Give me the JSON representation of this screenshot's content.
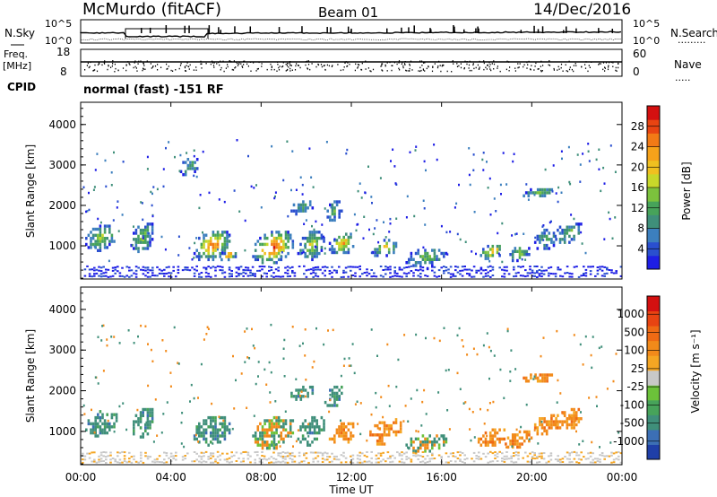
{
  "header": {
    "station": "McMurdo (fitACF)",
    "beam": "Beam 01",
    "date": "14/Dec/2016"
  },
  "noise_panel": {
    "left_label": "N.Sky",
    "right_label": "N.Search",
    "right_dots": ".........",
    "ticks": [
      "10^5",
      "10^0"
    ]
  },
  "freq_panel": {
    "left_label_1": "Freq.",
    "left_label_2": "[MHz]",
    "left_ticks": [
      "18",
      "8"
    ],
    "right_ticks": [
      "60",
      "0"
    ],
    "right_label": "Nave",
    "right_dots": "....."
  },
  "cpid_panel": {
    "label": "CPID",
    "text": "normal (fast) -151 RF"
  },
  "x_axis": {
    "label": "Time UT",
    "ticks": [
      "00:00",
      "04:00",
      "08:00",
      "12:00",
      "16:00",
      "20:00",
      "00:00"
    ]
  },
  "chart_data": [
    {
      "type": "heatmap",
      "name": "power",
      "ylabel": "Slant Range [km]",
      "yticks": [
        "1000",
        "2000",
        "3000",
        "4000"
      ],
      "ylim": [
        180,
        4550
      ],
      "xlim": [
        0,
        24
      ],
      "colorbar": {
        "label": "Power [dB]",
        "ticks": [
          "4",
          "8",
          "12",
          "16",
          "20",
          "24",
          "28"
        ],
        "colors": [
          "#1e1ee6",
          "#2a4fcf",
          "#3c7fbe",
          "#3f8f7a",
          "#47a35a",
          "#7cc23d",
          "#c8d82a",
          "#f0c020",
          "#f6a21a",
          "#f27a16",
          "#e84412",
          "#d41010"
        ]
      },
      "echo_regions": [
        {
          "t": 0.9,
          "r": 1250,
          "dt": 0.7,
          "dr": 350,
          "peak": 0.45
        },
        {
          "t": 2.7,
          "r": 1250,
          "dt": 0.5,
          "dr": 400,
          "peak": 0.4
        },
        {
          "t": 5.8,
          "r": 1050,
          "dt": 0.8,
          "dr": 400,
          "peak": 0.8
        },
        {
          "t": 6.5,
          "r": 800,
          "dt": 0.4,
          "dr": 120,
          "peak": 0.85
        },
        {
          "t": 8.5,
          "r": 1000,
          "dt": 0.9,
          "dr": 450,
          "peak": 0.9
        },
        {
          "t": 10.2,
          "r": 1050,
          "dt": 0.6,
          "dr": 400,
          "peak": 0.5
        },
        {
          "t": 11.6,
          "r": 1100,
          "dt": 0.6,
          "dr": 300,
          "peak": 0.65
        },
        {
          "t": 13.5,
          "r": 1000,
          "dt": 0.6,
          "dr": 250,
          "peak": 0.55
        },
        {
          "t": 15.3,
          "r": 750,
          "dt": 0.9,
          "dr": 250,
          "peak": 0.35
        },
        {
          "t": 18.2,
          "r": 900,
          "dt": 0.5,
          "dr": 200,
          "peak": 0.75
        },
        {
          "t": 19.4,
          "r": 850,
          "dt": 0.5,
          "dr": 200,
          "peak": 0.5
        },
        {
          "t": 20.6,
          "r": 1200,
          "dt": 0.5,
          "dr": 300,
          "peak": 0.35
        },
        {
          "t": 21.6,
          "r": 1350,
          "dt": 0.6,
          "dr": 300,
          "peak": 0.35
        },
        {
          "t": 20.3,
          "r": 2350,
          "dt": 0.7,
          "dr": 150,
          "peak": 0.4
        },
        {
          "t": 4.8,
          "r": 3000,
          "dt": 0.4,
          "dr": 250,
          "peak": 0.3
        },
        {
          "t": 9.8,
          "r": 2000,
          "dt": 0.5,
          "dr": 200,
          "peak": 0.3
        },
        {
          "t": 11.2,
          "r": 1900,
          "dt": 0.4,
          "dr": 300,
          "peak": 0.3
        }
      ]
    },
    {
      "type": "heatmap",
      "name": "velocity",
      "ylabel": "Slant Range [km]",
      "yticks": [
        "1000",
        "2000",
        "3000",
        "4000"
      ],
      "ylim": [
        180,
        4550
      ],
      "xlim": [
        0,
        24
      ],
      "colorbar": {
        "label": "Velocity [m s⁻¹]",
        "ticks": [
          "1000",
          "500",
          "100",
          "25",
          "-25",
          "-100",
          "-500",
          "-1000"
        ],
        "colors": [
          "#1f3fa8",
          "#3c6fb5",
          "#3f8f7a",
          "#47a35a",
          "#6cc23a",
          "#c8c8c8",
          "#f5a623",
          "#f28a1a",
          "#ef6a14",
          "#e84412",
          "#d41010"
        ]
      },
      "echo_regions": [
        {
          "t": 0.9,
          "r": 1250,
          "dt": 0.7,
          "dr": 350,
          "v": "toward"
        },
        {
          "t": 2.7,
          "r": 1250,
          "dt": 0.5,
          "dr": 400,
          "v": "toward"
        },
        {
          "t": 5.8,
          "r": 1050,
          "dt": 0.8,
          "dr": 400,
          "v": "toward"
        },
        {
          "t": 8.5,
          "r": 1000,
          "dt": 0.9,
          "dr": 450,
          "v": "mixed"
        },
        {
          "t": 10.2,
          "r": 1050,
          "dt": 0.6,
          "dr": 400,
          "v": "toward"
        },
        {
          "t": 11.6,
          "r": 1000,
          "dt": 0.6,
          "dr": 300,
          "v": "away"
        },
        {
          "t": 13.5,
          "r": 1050,
          "dt": 0.7,
          "dr": 350,
          "v": "away"
        },
        {
          "t": 15.3,
          "r": 750,
          "dt": 0.9,
          "dr": 250,
          "v": "mixed"
        },
        {
          "t": 18.2,
          "r": 900,
          "dt": 0.6,
          "dr": 250,
          "v": "away"
        },
        {
          "t": 19.4,
          "r": 850,
          "dt": 0.6,
          "dr": 250,
          "v": "away"
        },
        {
          "t": 20.6,
          "r": 1200,
          "dt": 0.5,
          "dr": 300,
          "v": "away"
        },
        {
          "t": 21.6,
          "r": 1350,
          "dt": 0.6,
          "dr": 300,
          "v": "away"
        },
        {
          "t": 20.3,
          "r": 2350,
          "dt": 0.7,
          "dr": 150,
          "v": "away"
        },
        {
          "t": 9.8,
          "r": 2000,
          "dt": 0.5,
          "dr": 200,
          "v": "toward"
        },
        {
          "t": 11.2,
          "r": 1900,
          "dt": 0.4,
          "dr": 300,
          "v": "toward"
        }
      ]
    }
  ]
}
